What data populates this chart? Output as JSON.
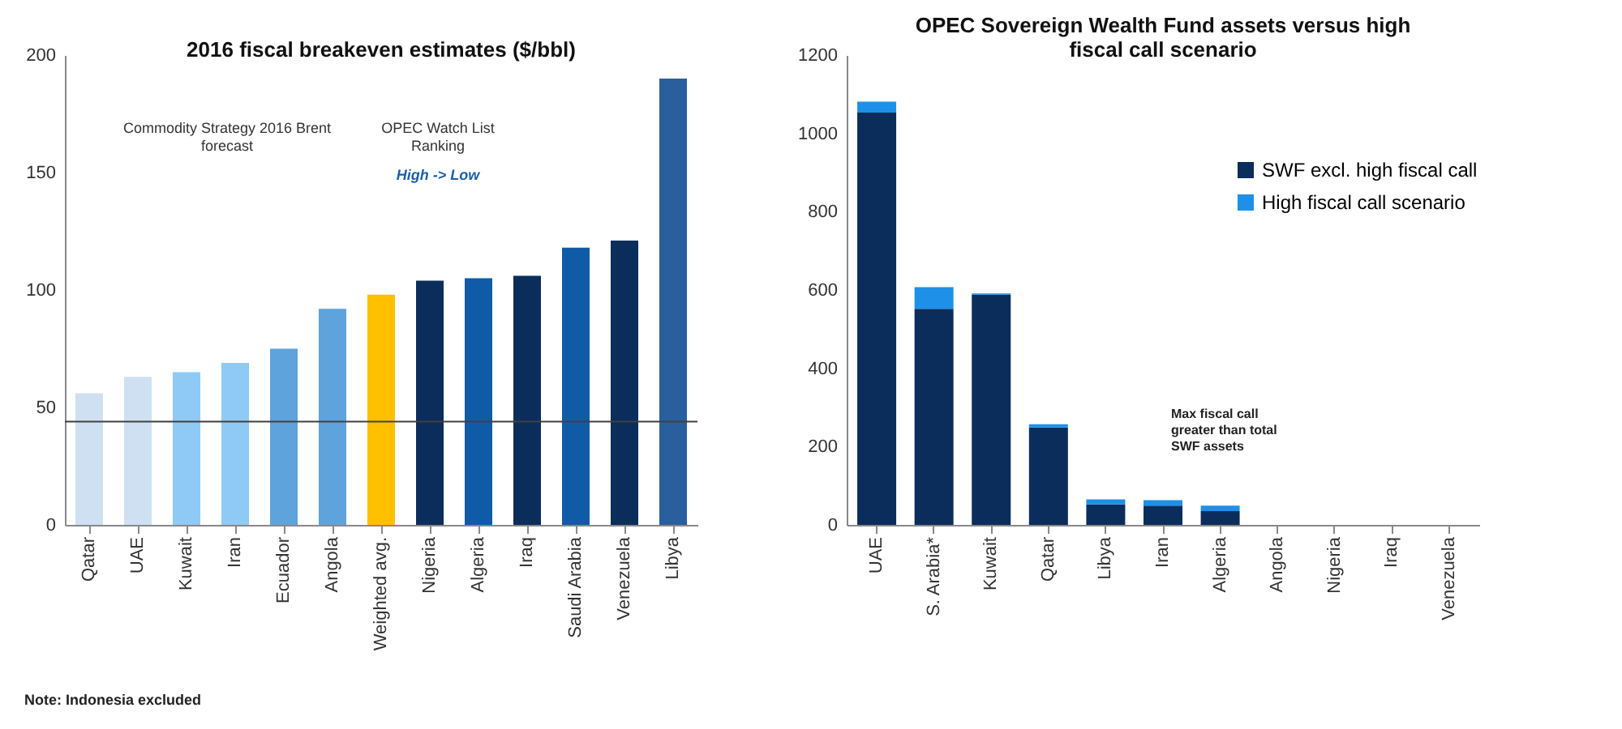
{
  "chart_data": [
    {
      "type": "bar",
      "title": "2016 fiscal breakeven estimates ($/bbl)",
      "categories": [
        "Qatar",
        "UAE",
        "Kuwait",
        "Iran",
        "Ecuador",
        "Angola",
        "Weighted avg.",
        "Nigeria",
        "Algeria",
        "Iraq",
        "Saudi Arabia",
        "Venezuela",
        "Libya"
      ],
      "values": [
        56,
        63,
        65,
        69,
        75,
        92,
        98,
        104,
        105,
        106,
        118,
        121,
        190
      ],
      "colors": [
        "#cfe0f3",
        "#cfe0f3",
        "#8fcaf5",
        "#8fcaf5",
        "#5ea3dc",
        "#5ea3dc",
        "#ffc000",
        "#0b2d5c",
        "#0f5ba8",
        "#0b2d5c",
        "#0f5ba8",
        "#0b2d5c",
        "#2a5f9e"
      ],
      "ylim": [
        0,
        200
      ],
      "yticks": [
        0,
        50,
        100,
        150,
        200
      ],
      "grid": false,
      "ref_lines": [
        {
          "axis": "y",
          "value": 44,
          "label": "Commodity Strategy 2016 Brent\nforecast",
          "color": "#404040"
        }
      ],
      "annotations": [
        "OPEC Watch List\nRanking",
        "High -> Low",
        "Note: Indonesia excluded"
      ]
    },
    {
      "type": "bar",
      "title": "OPEC Sovereign Wealth Fund assets versus high\nfiscal call scenario",
      "stacked": true,
      "categories": [
        "UAE",
        "S. Arabia*",
        "Kuwait",
        "Qatar",
        "Libya",
        "Iran",
        "Algeria",
        "Angola",
        "Nigeria",
        "Iraq",
        "Venezuela"
      ],
      "series": [
        {
          "name": "SWF excl. high fiscal call",
          "color": "#0b2d5c",
          "values": [
            1053,
            552,
            588,
            249,
            52,
            49,
            35,
            0,
            0,
            0,
            0
          ]
        },
        {
          "name": "High fiscal call scenario",
          "color": "#1e90e8",
          "values": [
            28,
            55,
            3,
            8,
            13,
            14,
            14,
            0,
            0,
            0,
            0
          ]
        }
      ],
      "ylim": [
        0,
        1200
      ],
      "yticks": [
        0,
        200,
        400,
        600,
        800,
        {
          "value": 1000,
          "label": "1000"
        },
        {
          "value": 1200,
          "label": "1200"
        }
      ],
      "grid": false,
      "legend": "top right",
      "annotations": [
        "Max fiscal call\ngreater than total\nSWF assets"
      ]
    }
  ]
}
